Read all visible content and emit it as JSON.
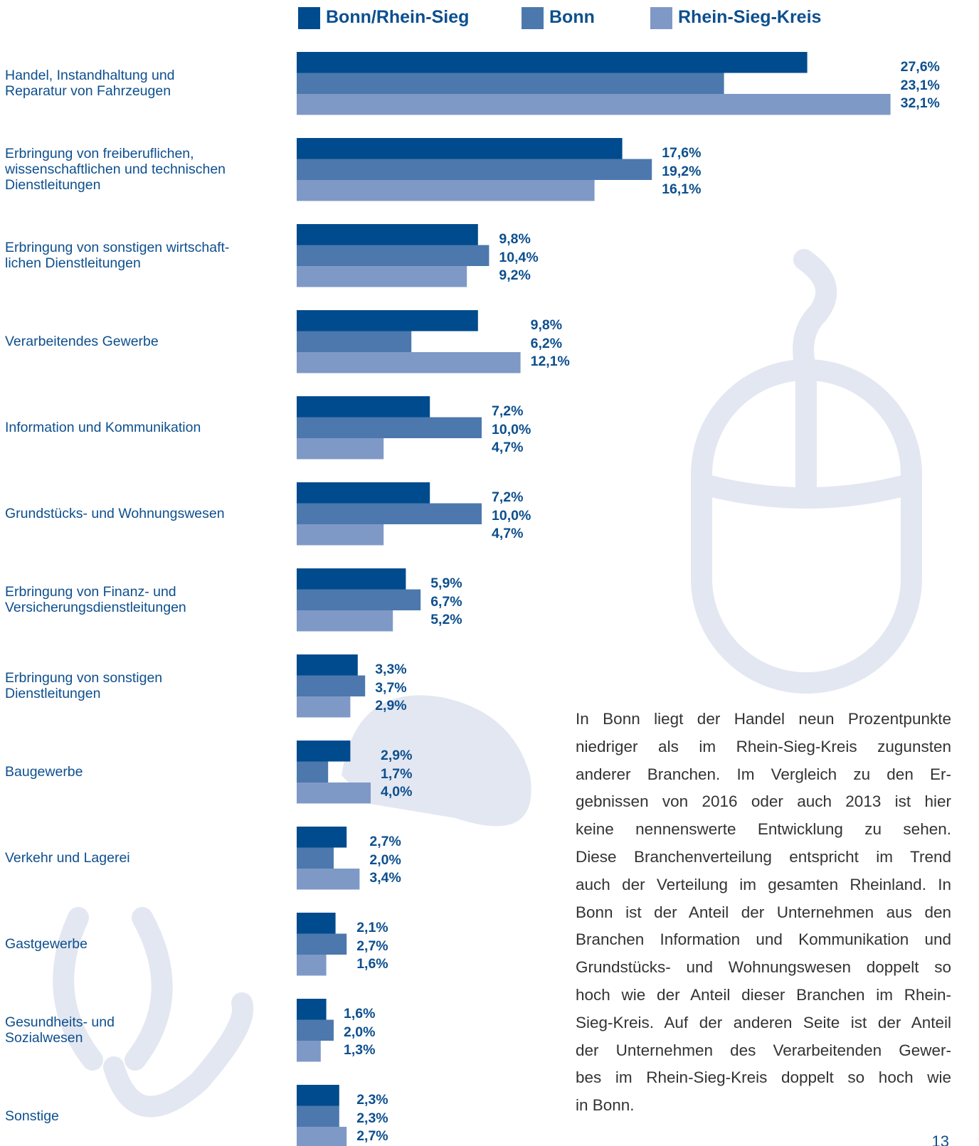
{
  "chart_data": {
    "type": "barh",
    "categories": [
      "Handel, Instandhaltung und\nReparatur von Fahrzeugen",
      "Erbringung von freiberuflichen,\nwissenschaftlichen und technischen\nDienstleitungen",
      "Erbringung von sonstigen wirtschaft-\nlichen Dienstleitungen",
      "Verarbeitendes Gewerbe",
      "Information und Kommunikation",
      "Grundstücks- und Wohnungswesen",
      "Erbringung von Finanz- und\nVersicherungsdienstleitungen",
      "Erbringung von sonstigen\nDienstleitungen",
      "Baugewerbe",
      "Verkehr und Lagerei",
      "Gastgewerbe",
      "Gesundheits- und\nSozialwesen",
      "Sonstige"
    ],
    "series": [
      {
        "name": "Bonn/Rhein-Sieg",
        "color": "#004b8d",
        "values": [
          27.6,
          17.6,
          9.8,
          9.8,
          7.2,
          7.2,
          5.9,
          3.3,
          2.9,
          2.7,
          2.1,
          1.6,
          2.3
        ],
        "value_labels": [
          "27,6%",
          "17,6%",
          "9,8%",
          "9,8%",
          "7,2%",
          "7,2%",
          "5,9%",
          "3,3%",
          "2,9%",
          "2,7%",
          "2,1%",
          "1,6%",
          "2,3%"
        ]
      },
      {
        "name": "Bonn",
        "color": "#4c78ad",
        "values": [
          23.1,
          19.2,
          10.4,
          6.2,
          10.0,
          10.0,
          6.7,
          3.7,
          1.7,
          2.0,
          2.7,
          2.0,
          2.3
        ],
        "value_labels": [
          "23,1%",
          "19,2%",
          "10,4%",
          "6,2%",
          "10,0%",
          "10,0%",
          "6,7%",
          "3,7%",
          "1,7%",
          "2,0%",
          "2,7%",
          "2,0%",
          "2,3%"
        ]
      },
      {
        "name": "Rhein-Sieg-Kreis",
        "color": "#7f99c6",
        "values": [
          32.1,
          16.1,
          9.2,
          12.1,
          4.7,
          4.7,
          5.2,
          2.9,
          4.0,
          3.4,
          1.6,
          1.3,
          2.7
        ],
        "value_labels": [
          "32,1%",
          "16,1%",
          "9,2%",
          "12,1%",
          "4,7%",
          "4,7%",
          "5,2%",
          "2,9%",
          "4,0%",
          "3,4%",
          "1,6%",
          "1,3%",
          "2,7%"
        ]
      }
    ]
  },
  "paragraph_lines": [
    "In Bonn liegt der Handel neun Prozentpunkte",
    "niedriger als im Rhein-Sieg-Kreis zugunsten",
    "anderer Branchen. Im Vergleich zu den Er-",
    "gebnissen von 2016 oder auch 2013 ist hier",
    "keine nennenswerte Entwicklung zu sehen.",
    "Diese Branchenverteilung entspricht im Trend",
    "auch der Verteilung im gesamten Rheinland. In",
    "Bonn ist der Anteil der Unternehmen aus den",
    "Branchen Information und Kommunikation und",
    "Grundstücks- und Wohnungswesen doppelt so",
    "hoch wie der Anteil dieser Branchen im Rhein-",
    "Sieg-Kreis. Auf der anderen Seite ist der Anteil",
    "der Unternehmen des Verarbeitenden Gewer-",
    "bes im Rhein-Sieg-Kreis doppelt so hoch wie",
    "in Bonn."
  ],
  "page_number": "13"
}
